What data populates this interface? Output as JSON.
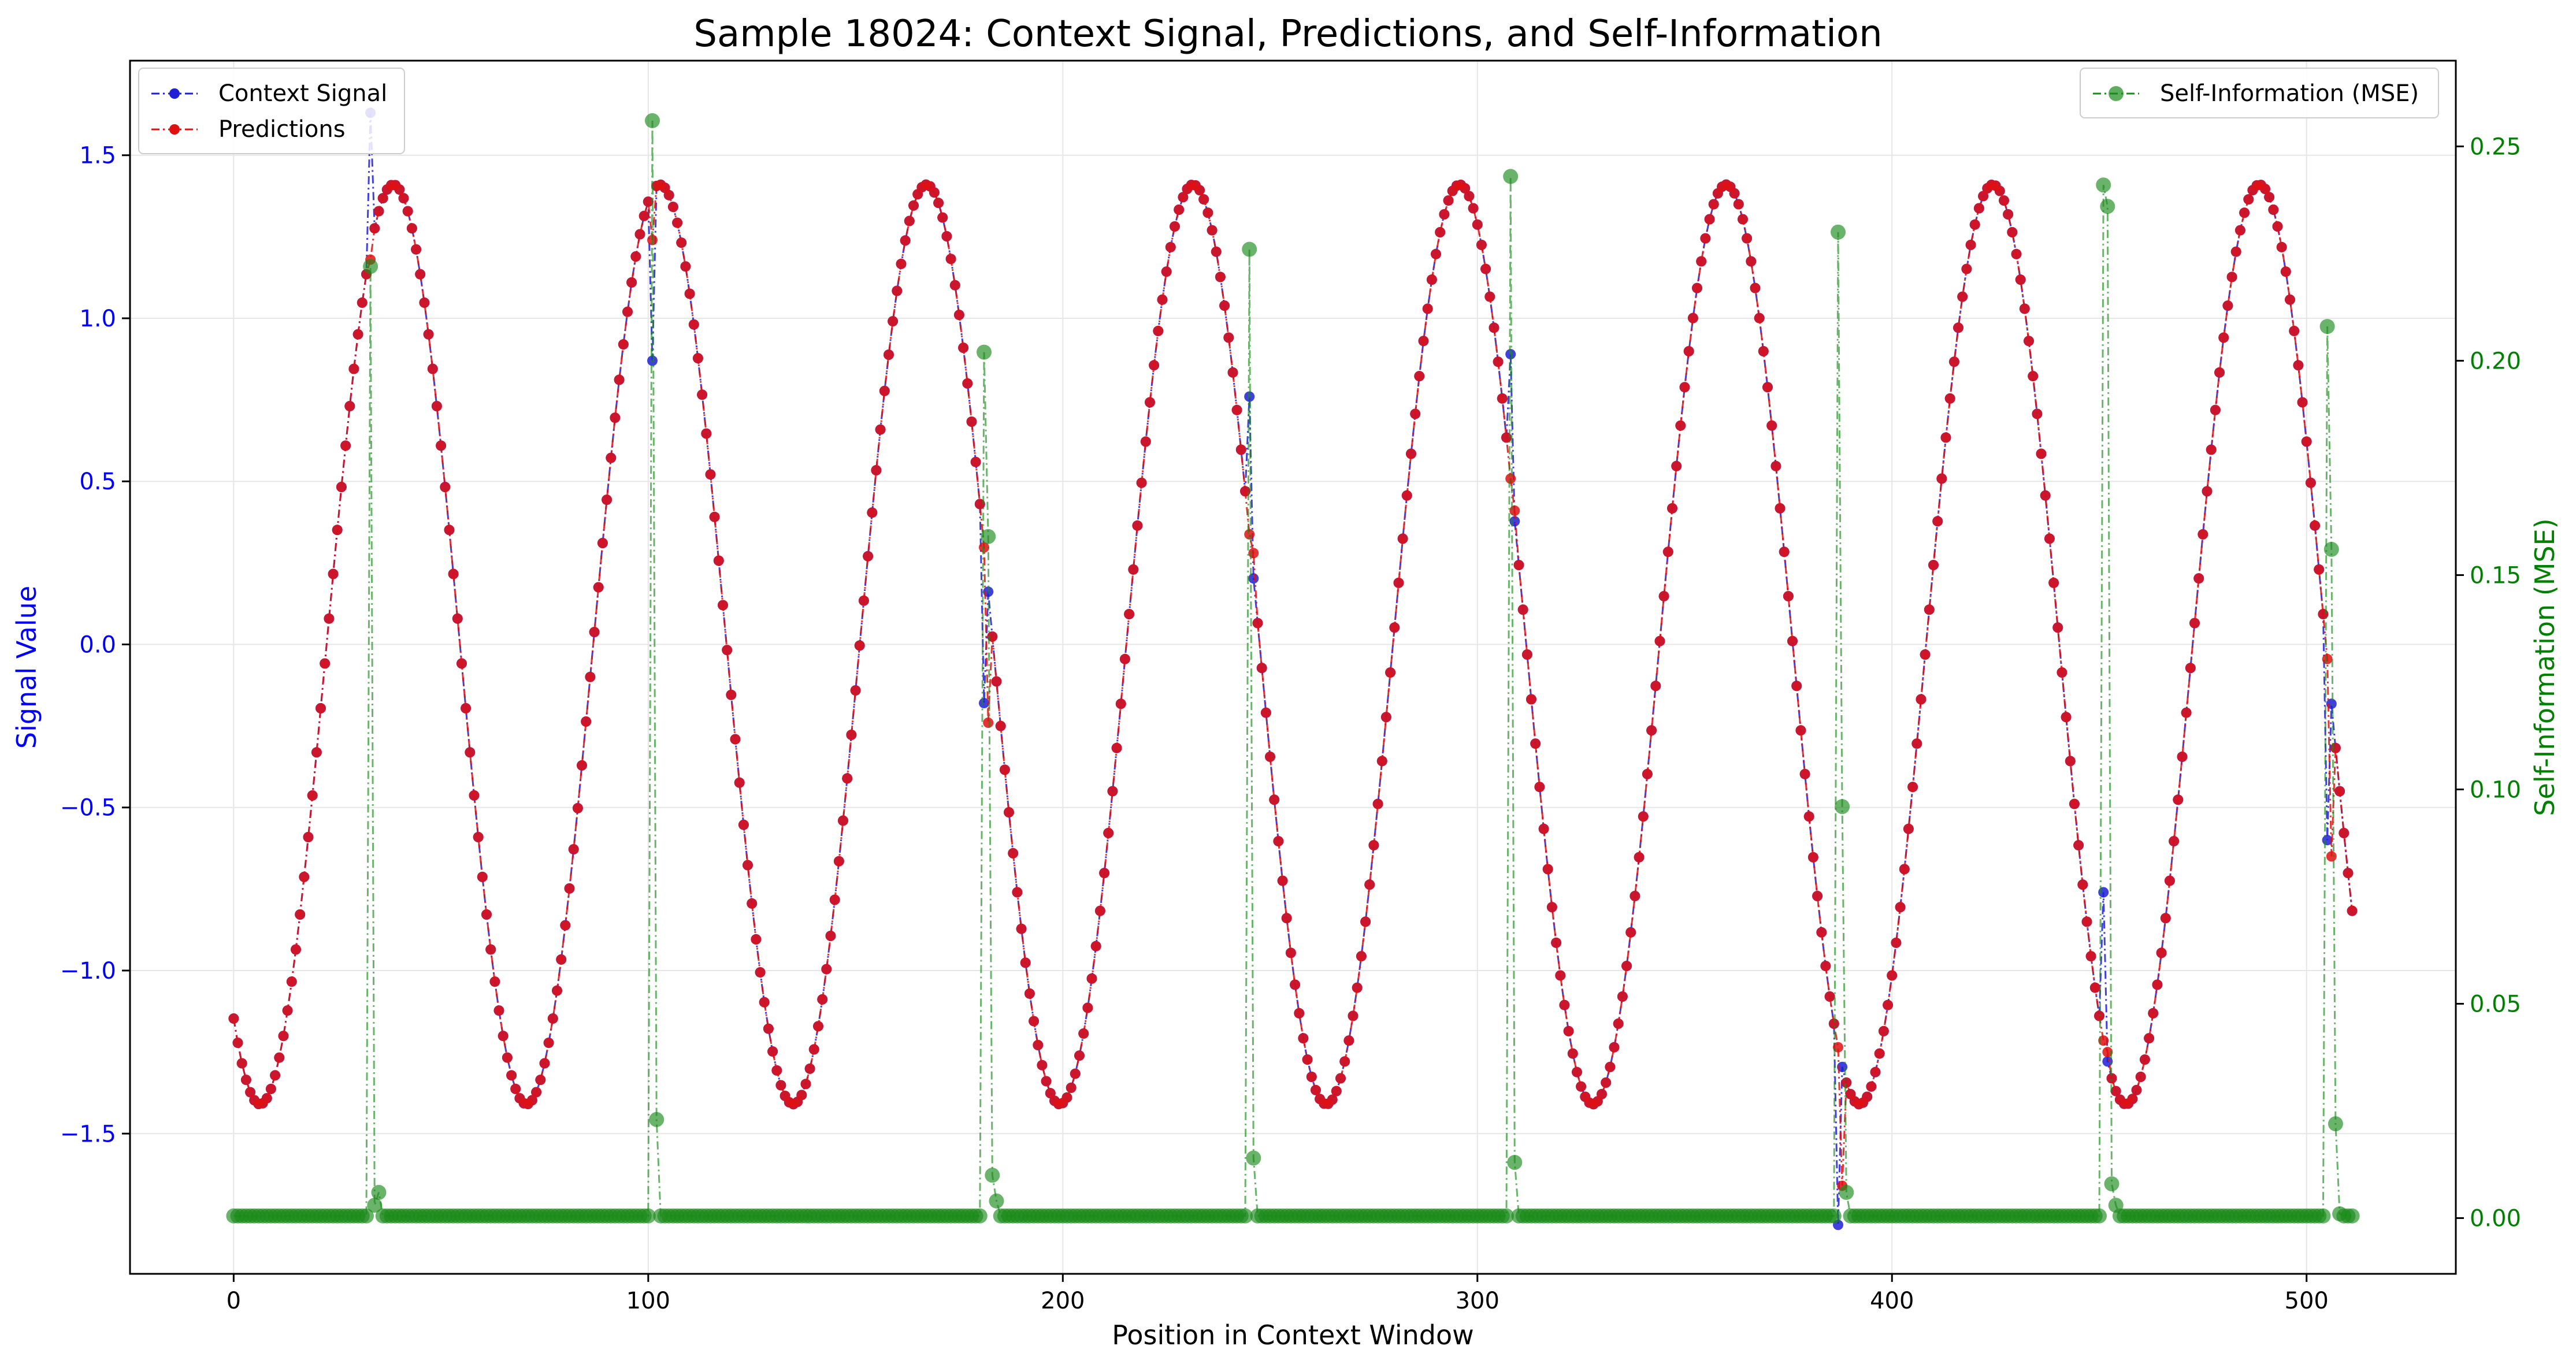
{
  "chart_data": {
    "type": "line",
    "title": "Sample 18024: Context Signal, Predictions, and Self-Information",
    "xlabel": "Position in Context Window",
    "ylabel": "Signal Value",
    "y2label": "Self-Information (MSE)",
    "xlim": [
      -25,
      536
    ],
    "ylim": [
      -1.93,
      1.79
    ],
    "y2lim": [
      -0.013,
      0.27
    ],
    "xticks": [
      0,
      100,
      200,
      300,
      400,
      500
    ],
    "yticks": [
      -1.5,
      -1.0,
      -0.5,
      0.0,
      0.5,
      1.0,
      1.5
    ],
    "y2ticks": [
      0.0,
      0.05,
      0.1,
      0.15,
      0.2,
      0.25
    ],
    "grid": true,
    "legend_left": "top-left",
    "legend_right": "top-right",
    "colors": {
      "context": "#1f1fd6",
      "predictions": "#e01010",
      "self_info": "#1a8a1a",
      "left_axis": "#0000ff",
      "right_axis": "#008000"
    },
    "n_points": 512,
    "signal_model": {
      "amplitude": 1.41,
      "period": 64.3,
      "peak_at": 38.5
    },
    "series": [
      {
        "name": "Context Signal",
        "axis": "left",
        "anomalies": [
          {
            "x": 33,
            "y": 1.63
          },
          {
            "x": 101,
            "y": 0.87
          },
          {
            "x": 181,
            "y": -0.18
          },
          {
            "x": 245,
            "y": 0.76
          },
          {
            "x": 308,
            "y": 0.89
          },
          {
            "x": 387,
            "y": -1.78
          },
          {
            "x": 451,
            "y": -0.76
          },
          {
            "x": 505,
            "y": -0.6
          }
        ]
      },
      {
        "name": "Predictions",
        "axis": "left",
        "anomalies": [
          {
            "x": 33,
            "y": 1.18
          },
          {
            "x": 101,
            "y": 1.24
          },
          {
            "x": 182,
            "y": -0.24
          },
          {
            "x": 246,
            "y": 0.28
          },
          {
            "x": 309,
            "y": 0.41
          },
          {
            "x": 388,
            "y": -1.66
          },
          {
            "x": 452,
            "y": -1.25
          },
          {
            "x": 506,
            "y": -0.65
          }
        ]
      },
      {
        "name": "Self-Information (MSE)",
        "axis": "right",
        "baseline": 0.0005,
        "spikes": [
          {
            "x": 33,
            "y": 0.222
          },
          {
            "x": 34,
            "y": 0.003
          },
          {
            "x": 35,
            "y": 0.006
          },
          {
            "x": 101,
            "y": 0.256
          },
          {
            "x": 102,
            "y": 0.023
          },
          {
            "x": 181,
            "y": 0.202
          },
          {
            "x": 182,
            "y": 0.159
          },
          {
            "x": 183,
            "y": 0.01
          },
          {
            "x": 184,
            "y": 0.004
          },
          {
            "x": 245,
            "y": 0.226
          },
          {
            "x": 246,
            "y": 0.014
          },
          {
            "x": 308,
            "y": 0.243
          },
          {
            "x": 309,
            "y": 0.013
          },
          {
            "x": 387,
            "y": 0.23
          },
          {
            "x": 388,
            "y": 0.096
          },
          {
            "x": 389,
            "y": 0.006
          },
          {
            "x": 451,
            "y": 0.241
          },
          {
            "x": 452,
            "y": 0.236
          },
          {
            "x": 453,
            "y": 0.008
          },
          {
            "x": 454,
            "y": 0.003
          },
          {
            "x": 505,
            "y": 0.208
          },
          {
            "x": 506,
            "y": 0.156
          },
          {
            "x": 507,
            "y": 0.022
          },
          {
            "x": 508,
            "y": 0.001
          }
        ]
      }
    ]
  }
}
